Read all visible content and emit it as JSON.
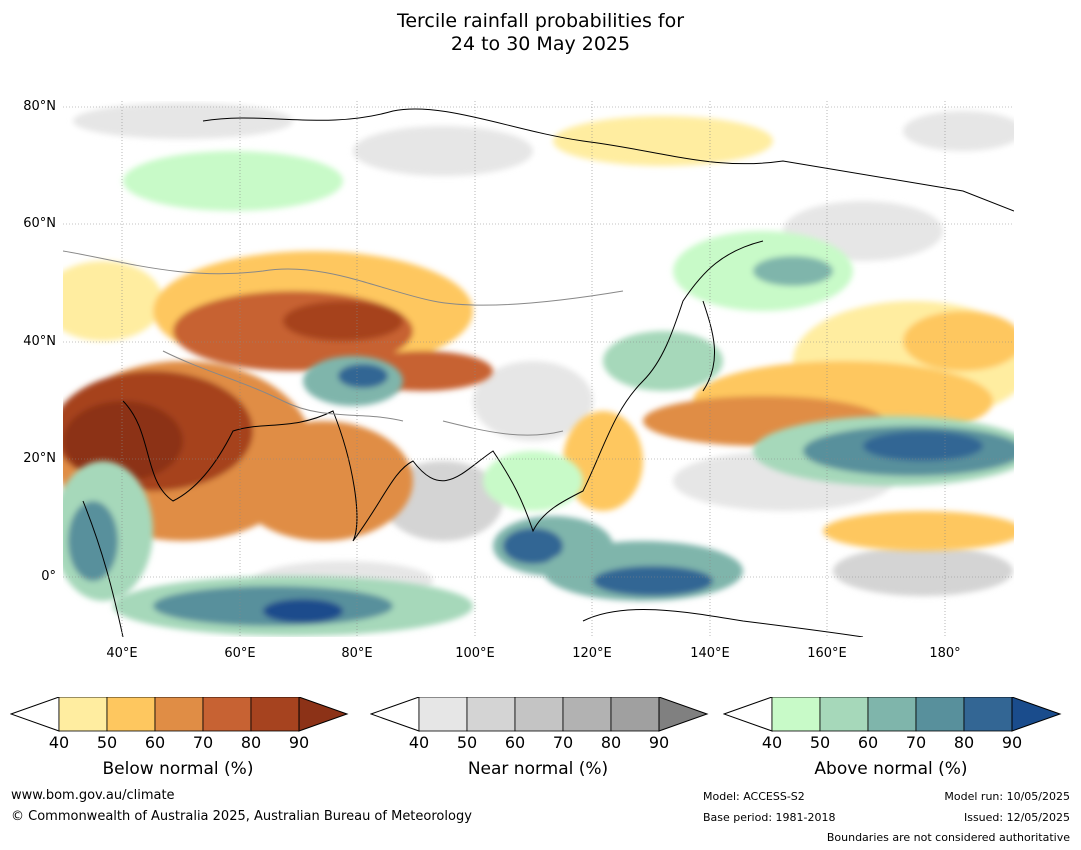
{
  "title": {
    "line1": "Tercile rainfall probabilities for",
    "line2": "24 to 30 May 2025"
  },
  "map": {
    "lat_labels": [
      "80°N",
      "60°N",
      "40°N",
      "20°N",
      "0°"
    ],
    "lon_labels": [
      "40°E",
      "60°E",
      "80°E",
      "100°E",
      "120°E",
      "140°E",
      "160°E",
      "180°"
    ]
  },
  "legends": [
    {
      "title": "Below normal (%)",
      "ticks": [
        "40",
        "50",
        "60",
        "70",
        "80",
        "90"
      ],
      "colors": [
        "#ffeda0",
        "#fec75f",
        "#e08d45",
        "#c76233",
        "#a6431f",
        "#8c3217"
      ]
    },
    {
      "title": "Near normal (%)",
      "ticks": [
        "40",
        "50",
        "60",
        "70",
        "80",
        "90"
      ],
      "colors": [
        "#e6e6e6",
        "#d4d4d4",
        "#c4c4c4",
        "#b2b2b2",
        "#a0a0a0",
        "#808080"
      ]
    },
    {
      "title": "Above normal (%)",
      "ticks": [
        "40",
        "50",
        "60",
        "70",
        "80",
        "90"
      ],
      "colors": [
        "#c8fac8",
        "#a6d8ba",
        "#7fb5ab",
        "#58909c",
        "#336694",
        "#1a4c8c"
      ]
    }
  ],
  "footer": {
    "website": "www.bom.gov.au/climate",
    "copyright": "© Commonwealth of Australia 2025, Australian Bureau of Meteorology",
    "model": "Model: ACCESS-S2",
    "base_period": "Base period: 1981-2018",
    "model_run": "Model run: 10/05/2025",
    "issued": "Issued: 12/05/2025",
    "disclaimer": "Boundaries are not considered authoritative"
  }
}
